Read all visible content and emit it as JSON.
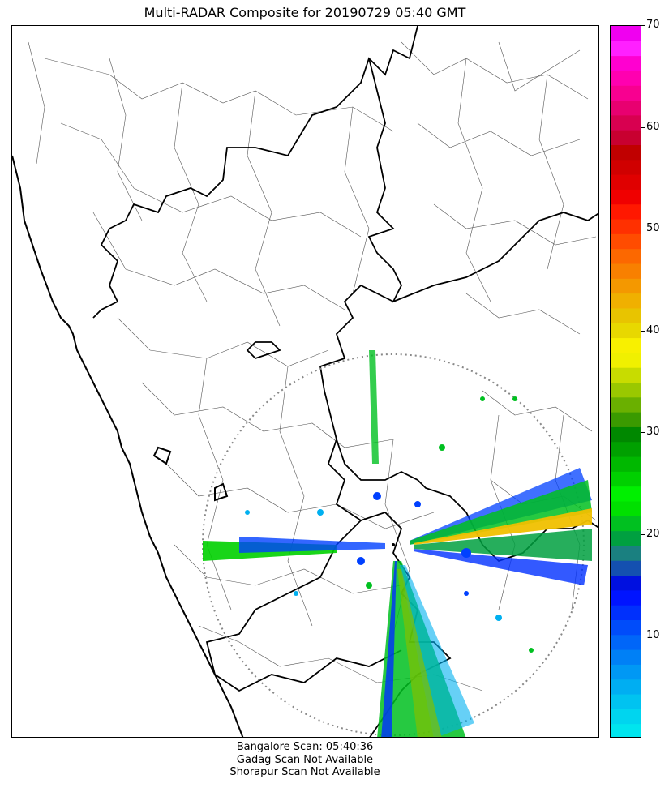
{
  "title": "Multi-RADAR Composite for 20190729 05:40 GMT",
  "colorbar": {
    "min": 0,
    "max": 70,
    "ticks": [
      "10",
      "20",
      "30",
      "40",
      "50",
      "60",
      "70"
    ],
    "colors": [
      "#00e5ee",
      "#00d5ef",
      "#00c3f0",
      "#00aef2",
      "#0098f4",
      "#0080f6",
      "#0066f8",
      "#004cfa",
      "#0030fc",
      "#0014ff",
      "#0010e0",
      "#1450b0",
      "#1a8080",
      "#00a040",
      "#00c020",
      "#00e000",
      "#00f000",
      "#00d000",
      "#00b800",
      "#00a000",
      "#008800",
      "#3a9a00",
      "#6ab000",
      "#9ac800",
      "#c8dc00",
      "#f0f000",
      "#f8f000",
      "#e8d800",
      "#e8c400",
      "#f0b000",
      "#f49800",
      "#f88000",
      "#fc6800",
      "#ff4c00",
      "#ff3000",
      "#ff1800",
      "#f00000",
      "#e00000",
      "#d00000",
      "#c00000",
      "#c80030",
      "#d80050",
      "#e80070",
      "#f80090",
      "#ff00b0",
      "#ff00d0",
      "#ff20ff",
      "#f000f0"
    ]
  },
  "footer": {
    "line1": "Bangalore Scan: 05:40:36",
    "line2": "Gadag Scan Not Available",
    "line3": "Shorapur Scan Not Available"
  },
  "legend_colors": {
    "coast": "#000000",
    "state_border": "#000000",
    "district_border": "#555555",
    "range_ring": "#888888"
  }
}
